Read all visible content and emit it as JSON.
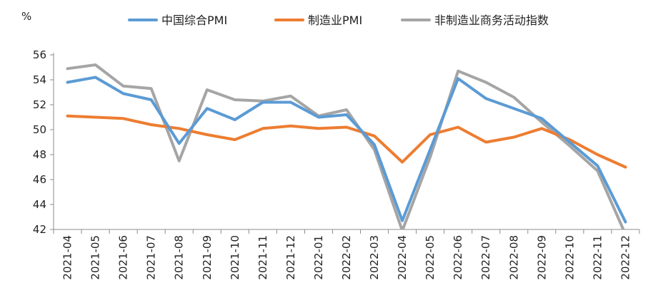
{
  "chart_data": {
    "type": "line",
    "ylabel": "%",
    "ylim": [
      42,
      56
    ],
    "yticks": [
      42,
      44,
      46,
      48,
      50,
      52,
      54,
      56
    ],
    "grid": false,
    "legend_position": "top",
    "categories": [
      "2021-04",
      "2021-05",
      "2021-06",
      "2021-07",
      "2021-08",
      "2021-09",
      "2021-10",
      "2021-11",
      "2021-12",
      "2022-01",
      "2022-02",
      "2022-03",
      "2022-04",
      "2022-05",
      "2022-06",
      "2022-07",
      "2022-08",
      "2022-09",
      "2022-10",
      "2022-11",
      "2022-12"
    ],
    "series": [
      {
        "name": "中国综合PMI",
        "color": "#5B9BD5",
        "values": [
          53.8,
          54.2,
          52.9,
          52.4,
          48.9,
          51.7,
          50.8,
          52.2,
          52.2,
          51.0,
          51.2,
          48.8,
          42.7,
          48.4,
          54.1,
          52.5,
          51.7,
          50.9,
          49.0,
          47.1,
          42.6
        ]
      },
      {
        "name": "制造业PMI",
        "color": "#ED7D31",
        "values": [
          51.1,
          51.0,
          50.9,
          50.4,
          50.1,
          49.6,
          49.2,
          50.1,
          50.3,
          50.1,
          50.2,
          49.5,
          47.4,
          49.6,
          50.2,
          49.0,
          49.4,
          50.1,
          49.2,
          48.0,
          47.0
        ]
      },
      {
        "name": "非制造业商务活动指数",
        "color": "#A5A5A5",
        "values": [
          54.9,
          55.2,
          53.5,
          53.3,
          47.5,
          53.2,
          52.4,
          52.3,
          52.7,
          51.1,
          51.6,
          48.4,
          41.9,
          47.8,
          54.7,
          53.8,
          52.6,
          50.6,
          48.7,
          46.7,
          41.6
        ]
      }
    ]
  }
}
